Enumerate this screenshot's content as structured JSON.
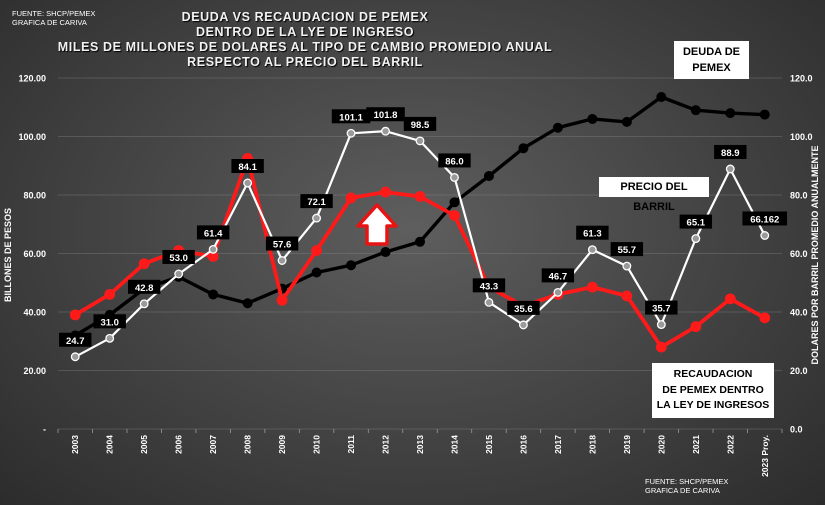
{
  "source": {
    "top_line1": "FUENTE:  SHCP/PEMEX",
    "top_line2": "GRAFICA DE CARIVA",
    "bottom_line1": "FUENTE:  SHCP/PEMEX",
    "bottom_line2": "GRAFICA DE CARIVA"
  },
  "chart_data": {
    "type": "line",
    "title_lines": [
      "DEUDA VS RECAUDACION DE PEMEX",
      "DENTRO DE LA LYE DE INGRESO",
      "MILES DE MILLONES DE DOLARES AL TIPO DE CAMBIO PROMEDIO ANUAL",
      "RESPECTO AL PRECIO DEL BARRIL"
    ],
    "ylabel_left": "BILLONES DE PESOS",
    "ylabel_right": "DOLARES POR BARRIL PROMEDIO ANUALMENTE",
    "y_ticks_left": [
      "-",
      "20.00",
      "40.00",
      "60.00",
      "80.00",
      "100.00",
      "120.00"
    ],
    "y_ticks_right": [
      "0.0",
      "20.0",
      "40.0",
      "60.0",
      "80.0",
      "100.0",
      "120.0"
    ],
    "ylim": [
      0,
      120
    ],
    "categories": [
      "2003",
      "2004",
      "2005",
      "2006",
      "2007",
      "2008",
      "2009",
      "2010",
      "2011",
      "2012",
      "2013",
      "2014",
      "2015",
      "2016",
      "2017",
      "2018",
      "2019",
      "2020",
      "2021",
      "2022",
      "2023 Proy."
    ],
    "series": [
      {
        "name": "DEUDA DE PEMEX",
        "color": "#000000",
        "values": [
          32,
          39,
          48,
          52,
          46,
          43,
          48,
          53.5,
          56,
          60.5,
          64,
          77.5,
          86.5,
          96,
          103,
          106,
          105,
          113.5,
          109,
          108,
          107.5
        ]
      },
      {
        "name": "RECAUDACION DE PEMEX DENTRO LA LEY DE INGRESOS",
        "color": "#ff1a1a",
        "values": [
          39,
          46,
          56.5,
          61,
          59,
          92.5,
          44,
          61,
          79,
          81,
          79.5,
          73,
          48.5,
          42,
          46,
          48.5,
          45.5,
          28,
          35,
          44.5,
          38
        ]
      },
      {
        "name": "PRECIO DEL BARRIL",
        "color": "#ffffff",
        "values": [
          24.7,
          31.0,
          42.8,
          53.0,
          61.4,
          84.1,
          57.6,
          72.1,
          101.1,
          101.8,
          98.5,
          86.0,
          43.3,
          35.6,
          46.7,
          61.3,
          55.7,
          35.7,
          65.1,
          88.9,
          66.162
        ],
        "data_labels": [
          "24.7",
          "31.0",
          "42.8",
          "53.0",
          "61.4",
          "84.1",
          "57.6",
          "72.1",
          "101.1",
          "101.8",
          "98.5",
          "86.0",
          "43.3",
          "35.6",
          "46.7",
          "61.3",
          "55.7",
          "35.7",
          "65.1",
          "88.9",
          "66.162"
        ]
      }
    ],
    "annotations": {
      "deuda_box": [
        "DEUDA DE",
        "PEMEX"
      ],
      "precio_box": "PRECIO DEL BARRIL",
      "recaudacion_box": [
        "RECAUDACION",
        "DE PEMEX DENTRO",
        "LA LEY DE INGRESOS"
      ]
    }
  }
}
